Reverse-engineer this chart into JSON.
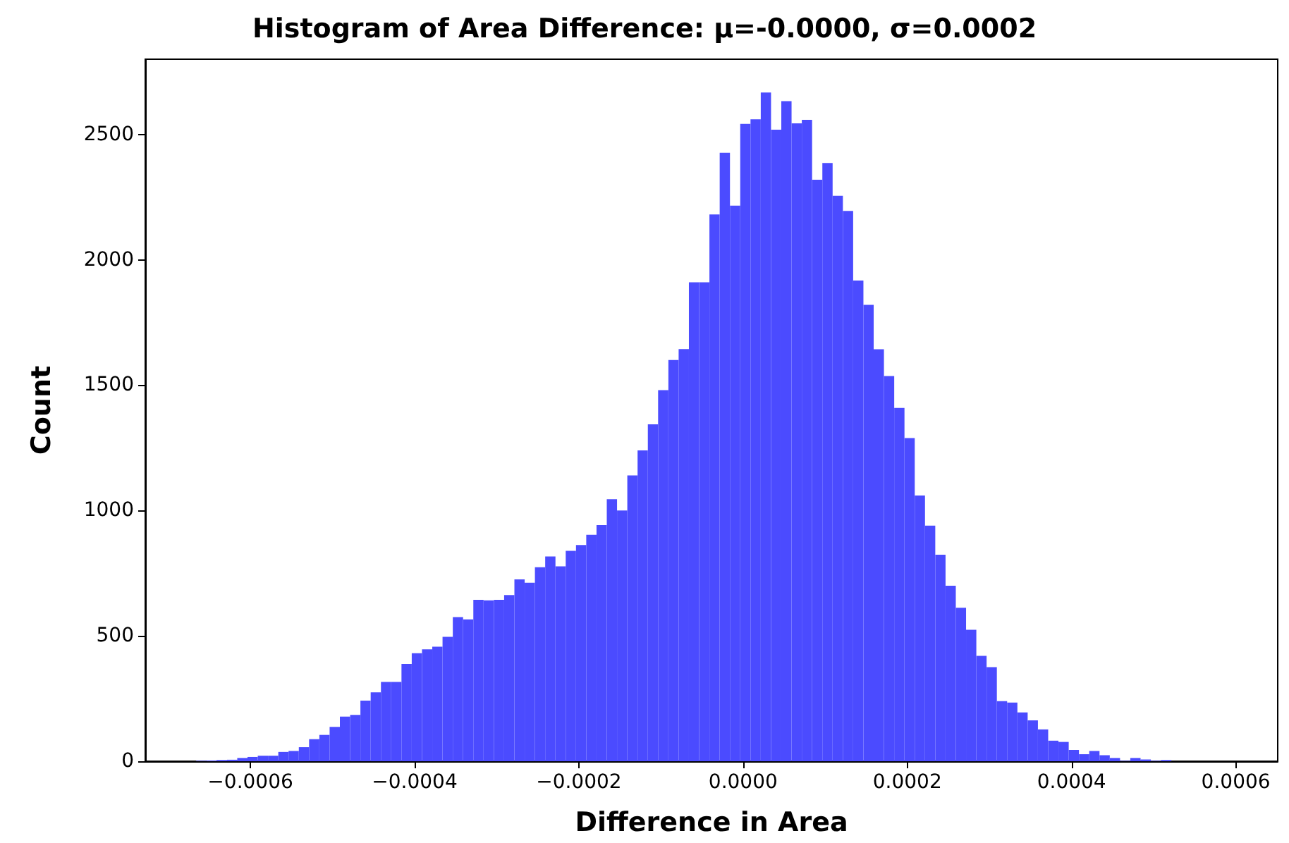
{
  "chart_data": {
    "type": "histogram",
    "title": "Histogram of Area Difference: μ=-0.0000, σ=0.0002",
    "xlabel": "Difference in Area",
    "ylabel": "Count",
    "color": "#4b4bff",
    "bins": [
      -0.000666,
      -0.0006535,
      -0.000641,
      -0.0006285,
      -0.000616,
      -0.0006035,
      -0.000591,
      -0.0005785,
      -0.000566,
      -0.0005535,
      -0.000541,
      -0.0005285,
      -0.000516,
      -0.0005035,
      -0.000491,
      -0.0004785,
      -0.000466,
      -0.0004535,
      -0.000441,
      -0.0004285,
      -0.000416,
      -0.0004035,
      -0.000391,
      -0.0003785,
      -0.000366,
      -0.0003535,
      -0.000341,
      -0.0003285,
      -0.000316,
      -0.0003035,
      -0.000291,
      -0.0002785,
      -0.000266,
      -0.0002535,
      -0.000241,
      -0.0002285,
      -0.000216,
      -0.0002035,
      -0.000191,
      -0.0001785,
      -0.000166,
      -0.0001535,
      -0.000141,
      -0.0001285,
      -0.000116,
      -0.0001035,
      -9.1e-05,
      -7.85e-05,
      -6.6e-05,
      -5.35e-05,
      -4.1e-05,
      -2.85e-05,
      -1.6e-05,
      -3.5e-06,
      9e-06,
      2.15e-05,
      3.4e-05,
      4.65e-05,
      5.9e-05,
      7.15e-05,
      8.4e-05,
      9.65e-05,
      0.000109,
      0.0001215,
      0.000134,
      0.0001465,
      0.000159,
      0.0001715,
      0.000184,
      0.0001965,
      0.000209,
      0.0002215,
      0.000234,
      0.0002465,
      0.000259,
      0.0002715,
      0.000284,
      0.0002965,
      0.000309,
      0.0003215,
      0.000334,
      0.0003465,
      0.000359,
      0.0003715,
      0.000384,
      0.0003965,
      0.000409,
      0.0004215,
      0.000434,
      0.0004465,
      0.000459,
      0.0004715,
      0.000484,
      0.0004965,
      0.000509,
      0.0005215
    ],
    "values": [
      2,
      3,
      5,
      6,
      13,
      17,
      22,
      22,
      37,
      41,
      56,
      88,
      105,
      137,
      178,
      185,
      242,
      275,
      316,
      316,
      388,
      431,
      446,
      457,
      496,
      575,
      566,
      644,
      642,
      644,
      663,
      725,
      712,
      774,
      817,
      777,
      839,
      862,
      903,
      942,
      1045,
      1000,
      1140,
      1240,
      1344,
      1480,
      1600,
      1644,
      1910,
      1910,
      2181,
      2427,
      2216,
      2542,
      2560,
      2667,
      2519,
      2633,
      2544,
      2558,
      2319,
      2386,
      2255,
      2195,
      1917,
      1820,
      1643,
      1536,
      1409,
      1289,
      1060,
      940,
      824,
      700,
      612,
      524,
      420,
      375,
      240,
      234,
      195,
      163,
      127,
      82,
      77,
      45,
      28,
      41,
      24,
      13,
      2,
      13,
      7,
      2,
      5
    ],
    "xlim": [
      -0.000728,
      0.000651
    ],
    "xticks": [
      {
        "value": -0.0006,
        "label": "−0.0006"
      },
      {
        "value": -0.0004,
        "label": "−0.0004"
      },
      {
        "value": -0.0002,
        "label": "−0.0002"
      },
      {
        "value": 0,
        "label": "0.0000"
      },
      {
        "value": 0.0002,
        "label": "0.0002"
      },
      {
        "value": 0.0004,
        "label": "0.0004"
      },
      {
        "value": 0.0006,
        "label": "0.0006"
      }
    ],
    "ylim": [
      0,
      2800
    ],
    "yticks": [
      0,
      500,
      1000,
      1500,
      2000,
      2500
    ],
    "grid": false,
    "legend": false
  }
}
